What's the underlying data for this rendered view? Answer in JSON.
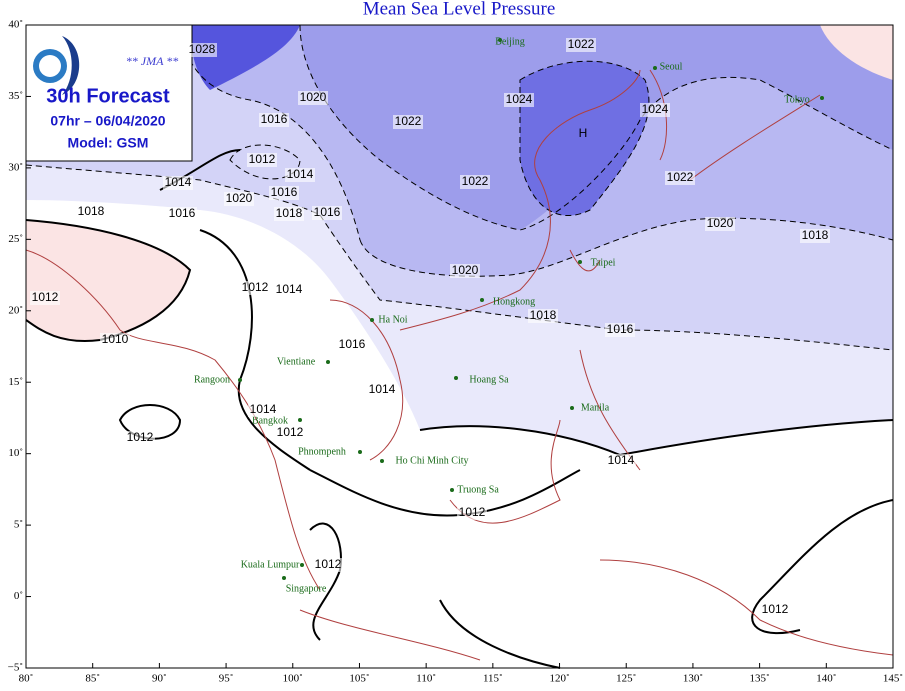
{
  "title": "Mean Sea Level Pressure",
  "legend": {
    "agency": "** JMA **",
    "forecast": "30h Forecast",
    "valid": "07hr – 06/04/2020",
    "model": "Model: GSM"
  },
  "axes": {
    "longitude": [
      "80˚",
      "85˚",
      "90˚",
      "95˚",
      "100˚",
      "105˚",
      "110˚",
      "115˚",
      "120˚",
      "125˚",
      "130˚",
      "135˚",
      "140˚",
      "145˚"
    ],
    "latitude": [
      "40˚",
      "35˚",
      "30˚",
      "25˚",
      "20˚",
      "15˚",
      "10˚",
      "5˚",
      "0˚",
      "−5˚"
    ]
  },
  "high_label": "H",
  "cities": [
    "Beijing",
    "Seoul",
    "Tokyo",
    "Taipei",
    "Hongkong",
    "Ha Noi",
    "Vientiane",
    "Rangoon",
    "Hoang Sa",
    "Manila",
    "Bangkok",
    "Phnompenh",
    "Ho Chi Minh City",
    "Truong Sa",
    "Kuala Lumpur",
    "Singapore"
  ],
  "isobar_labels": [
    "1028",
    "1022",
    "1024",
    "1024",
    "1020",
    "1016",
    "1022",
    "1012",
    "1014",
    "1014",
    "1022",
    "1016",
    "1016",
    "1018",
    "1020",
    "1018",
    "1016",
    "1022",
    "1020",
    "1018",
    "1012",
    "1012",
    "1014",
    "1020",
    "1018",
    "1016",
    "1010",
    "1016",
    "1014",
    "1014",
    "1012",
    "1012",
    "1014",
    "1012",
    "1012",
    "1012"
  ]
}
